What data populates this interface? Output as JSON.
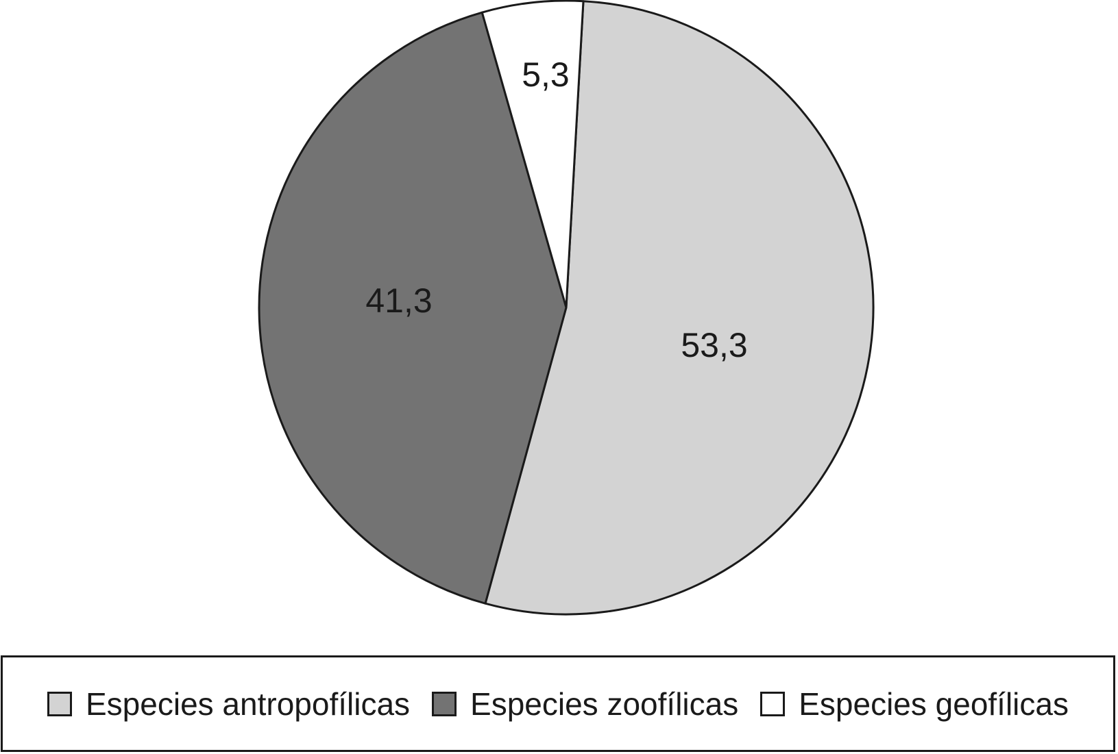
{
  "chart_data": {
    "type": "pie",
    "title": "",
    "slices": [
      {
        "label": "Especies antropofílicas",
        "value": 53.3,
        "value_text": "53,3",
        "color": "#d3d3d3"
      },
      {
        "label": "Especies zoofílicas",
        "value": 41.3,
        "value_text": "41,3",
        "color": "#737373"
      },
      {
        "label": "Especies geofílicas",
        "value": 5.3,
        "value_text": "5,3",
        "color": "#ffffff"
      }
    ],
    "start_direction": "top (12 o'clock), clockwise",
    "legend_placement": "bottom",
    "outline_color": "#1a1a1a"
  },
  "legend": {
    "items": [
      {
        "label": "Especies antropofílicas",
        "color": "#d3d3d3"
      },
      {
        "label": "Especies zoofílicas",
        "color": "#737373"
      },
      {
        "label": "Especies geofílicas",
        "color": "#ffffff"
      }
    ]
  }
}
